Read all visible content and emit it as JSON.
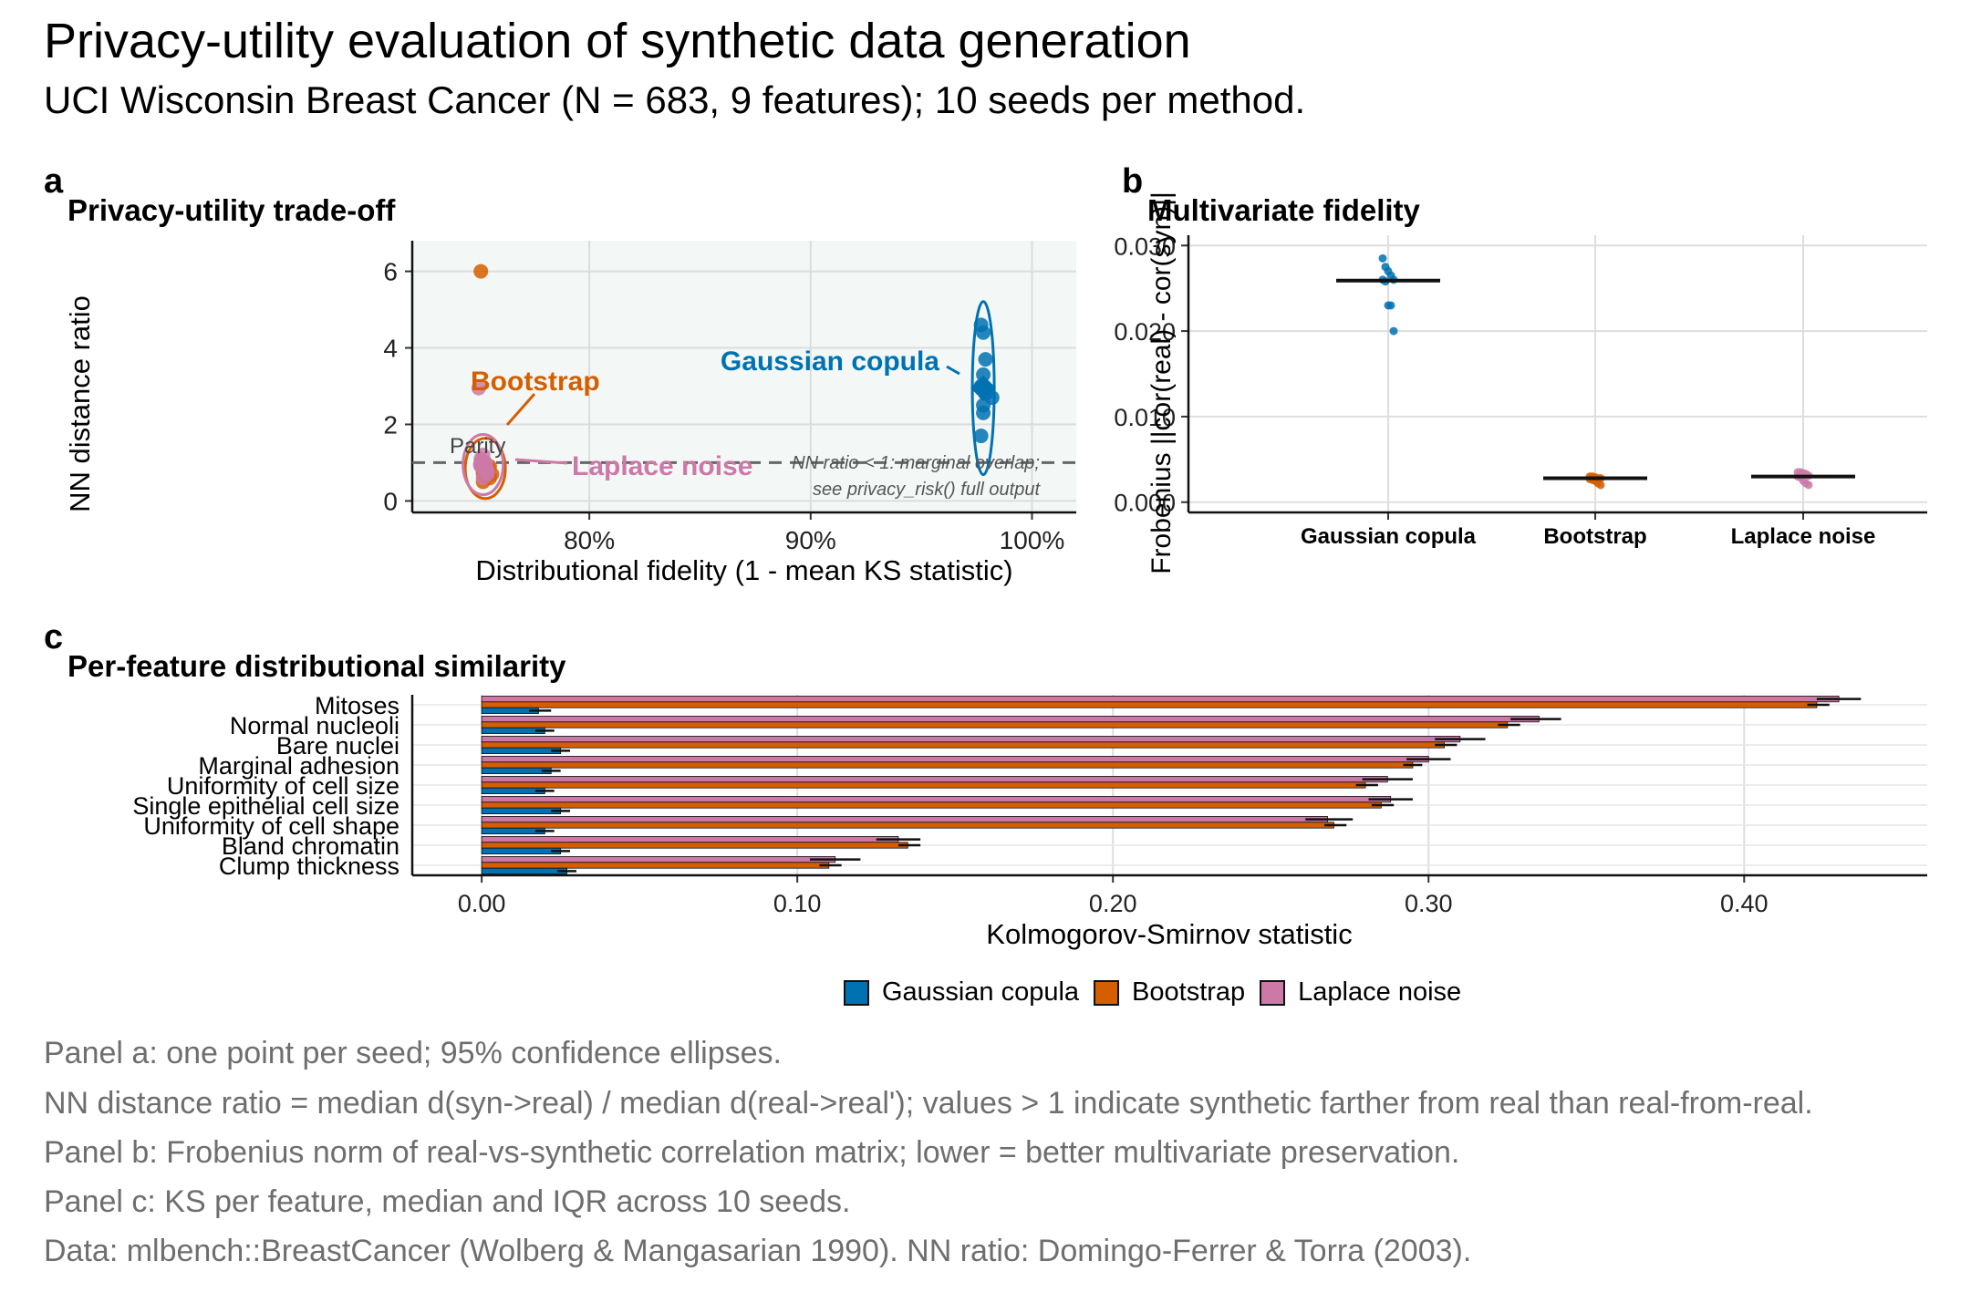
{
  "title": "Privacy-utility evaluation of synthetic data generation",
  "subtitle": "UCI Wisconsin Breast Cancer (N = 683, 9 features); 10 seeds per method.",
  "colors": {
    "gaussian": "#0072B2",
    "bootstrap": "#D55E00",
    "laplace": "#CC79A7"
  },
  "panel_a": {
    "tag": "a",
    "title": "Privacy-utility trade-off",
    "labels": {
      "gaussian": "Gaussian copula",
      "bootstrap": "Bootstrap",
      "laplace": "Laplace noise",
      "parity": "Parity"
    },
    "note": [
      "NN ratio < 1: marginal overlap;",
      "see privacy_risk() full output"
    ]
  },
  "panel_b": {
    "tag": "b",
    "title": "Multivariate fidelity"
  },
  "panel_c": {
    "tag": "c",
    "title": "Per-feature distributional similarity"
  },
  "legend": [
    "Gaussian copula",
    "Bootstrap",
    "Laplace noise"
  ],
  "captions": [
    "Panel a: one point per seed; 95% confidence ellipses.",
    "NN distance ratio = median d(syn->real) / median d(real->real'); values > 1 indicate synthetic farther from real than real-from-real.",
    "Panel b: Frobenius norm of real-vs-synthetic correlation matrix; lower = better multivariate preservation.",
    "Panel c: KS per feature, median and IQR across 10 seeds.",
    "Data: mlbench::BreastCancer (Wolberg & Mangasarian 1990). NN ratio: Domingo-Ferrer & Torra (2003)."
  ],
  "chart_data": [
    {
      "type": "scatter",
      "title": "Privacy-utility trade-off",
      "xlabel": "Distributional fidelity (1 - mean KS statistic)",
      "ylabel": "NN distance ratio",
      "xlim": [
        0.72,
        1.02
      ],
      "ylim": [
        -0.3,
        6.8
      ],
      "xticks": [
        0.8,
        0.9,
        1.0
      ],
      "xtick_labels": [
        "80%",
        "90%",
        "100%"
      ],
      "yticks": [
        0,
        2,
        4,
        6
      ],
      "reference_line_y": 1,
      "grid": true,
      "series": [
        {
          "name": "Gaussian copula",
          "color": "#0072B2",
          "x": [
            0.977,
            0.978,
            0.979,
            0.978,
            0.977,
            0.979,
            0.982,
            0.978,
            0.977,
            0.978
          ],
          "y": [
            4.6,
            4.4,
            3.7,
            3.3,
            3.0,
            2.8,
            2.7,
            2.3,
            1.7,
            2.5
          ],
          "centroid": [
            0.978,
            2.95
          ]
        },
        {
          "name": "Bootstrap",
          "color": "#D55E00",
          "x": [
            0.751,
            0.752,
            0.753,
            0.754,
            0.755,
            0.752,
            0.754,
            0.756,
            0.753,
            0.755
          ],
          "y": [
            6.0,
            0.7,
            0.8,
            0.9,
            0.6,
            0.5,
            0.8,
            0.7,
            1.0,
            0.9
          ],
          "centroid": [
            0.753,
            0.85
          ]
        },
        {
          "name": "Laplace noise",
          "color": "#CC79A7",
          "x": [
            0.75,
            0.751,
            0.752,
            0.753,
            0.754,
            0.751,
            0.752,
            0.753,
            0.754,
            0.752
          ],
          "y": [
            2.95,
            1.1,
            0.9,
            0.8,
            0.7,
            1.0,
            0.6,
            0.9,
            0.8,
            1.2
          ],
          "centroid": [
            0.752,
            0.95
          ]
        }
      ]
    },
    {
      "type": "scatter",
      "title": "Multivariate fidelity",
      "ylabel": "Frobenius ||cor(real) - cor(syn)||",
      "categories": [
        "Gaussian copula",
        "Bootstrap",
        "Laplace noise"
      ],
      "ylim": [
        -0.0012,
        0.0312
      ],
      "yticks": [
        0.0,
        0.01,
        0.02,
        0.03
      ],
      "ytick_labels": [
        "0.000",
        "0.010",
        "0.020",
        "0.030"
      ],
      "grid": true,
      "series": [
        {
          "name": "Gaussian copula",
          "color": "#0072B2",
          "median": 0.0259,
          "values": [
            0.0285,
            0.0275,
            0.027,
            0.0265,
            0.026,
            0.026,
            0.0258,
            0.023,
            0.023,
            0.02
          ]
        },
        {
          "name": "Bootstrap",
          "color": "#D55E00",
          "median": 0.0028,
          "values": [
            0.003,
            0.003,
            0.0029,
            0.0028,
            0.0028,
            0.0027,
            0.0026,
            0.0025,
            0.0022,
            0.002
          ]
        },
        {
          "name": "Laplace noise",
          "color": "#CC79A7",
          "median": 0.003,
          "values": [
            0.0035,
            0.0035,
            0.0034,
            0.0033,
            0.0031,
            0.003,
            0.0029,
            0.0025,
            0.0022,
            0.002
          ]
        }
      ]
    },
    {
      "type": "bar",
      "title": "Per-feature distributional similarity",
      "xlabel": "Kolmogorov-Smirnov statistic",
      "xlim": [
        -0.022,
        0.458
      ],
      "xticks": [
        0.0,
        0.1,
        0.2,
        0.3,
        0.4
      ],
      "xtick_labels": [
        "0.00",
        "0.10",
        "0.20",
        "0.30",
        "0.40"
      ],
      "grid": true,
      "categories": [
        "Mitoses",
        "Normal nucleoli",
        "Bare nuclei",
        "Marginal adhesion",
        "Uniformity of cell size",
        "Single epithelial cell size",
        "Uniformity of cell shape",
        "Bland chromatin",
        "Clump thickness"
      ],
      "series": [
        {
          "name": "Gaussian copula",
          "color": "#0072B2",
          "values": [
            0.018,
            0.02,
            0.025,
            0.022,
            0.02,
            0.025,
            0.02,
            0.025,
            0.027
          ],
          "iqr": [
            [
              0.015,
              0.022
            ],
            [
              0.017,
              0.023
            ],
            [
              0.022,
              0.028
            ],
            [
              0.019,
              0.025
            ],
            [
              0.017,
              0.023
            ],
            [
              0.022,
              0.028
            ],
            [
              0.017,
              0.023
            ],
            [
              0.022,
              0.028
            ],
            [
              0.024,
              0.03
            ]
          ]
        },
        {
          "name": "Bootstrap",
          "color": "#D55E00",
          "values": [
            0.423,
            0.325,
            0.305,
            0.295,
            0.28,
            0.285,
            0.27,
            0.135,
            0.11
          ],
          "iqr": [
            [
              0.42,
              0.427
            ],
            [
              0.322,
              0.329
            ],
            [
              0.302,
              0.309
            ],
            [
              0.292,
              0.298
            ],
            [
              0.277,
              0.284
            ],
            [
              0.282,
              0.289
            ],
            [
              0.267,
              0.274
            ],
            [
              0.132,
              0.139
            ],
            [
              0.107,
              0.114
            ]
          ]
        },
        {
          "name": "Laplace noise",
          "color": "#CC79A7",
          "values": [
            0.43,
            0.335,
            0.31,
            0.3,
            0.287,
            0.288,
            0.268,
            0.132,
            0.112
          ],
          "iqr": [
            [
              0.423,
              0.437
            ],
            [
              0.326,
              0.342
            ],
            [
              0.302,
              0.318
            ],
            [
              0.293,
              0.307
            ],
            [
              0.279,
              0.295
            ],
            [
              0.281,
              0.295
            ],
            [
              0.261,
              0.276
            ],
            [
              0.125,
              0.139
            ],
            [
              0.104,
              0.12
            ]
          ]
        }
      ]
    }
  ]
}
